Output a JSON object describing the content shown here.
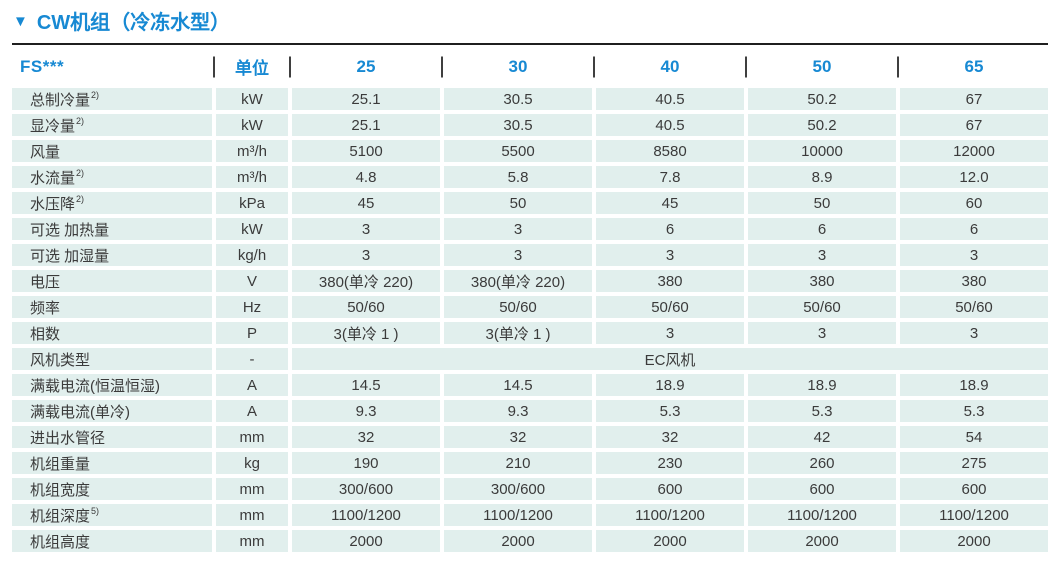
{
  "colors": {
    "accent": "#1789d3",
    "cell_bg": "#e1efed",
    "text": "#3b3b3b",
    "header_rule": "#1f1f1f"
  },
  "title": {
    "marker_glyph": "▼",
    "text": "CW机组（冷冻水型）"
  },
  "table": {
    "model_header": "FS***",
    "unit_header": "单位",
    "model_columns": [
      "25",
      "30",
      "40",
      "50",
      "65"
    ],
    "rows": [
      {
        "label": "总制冷量",
        "sup": "2)",
        "unit": "kW",
        "values": [
          "25.1",
          "30.5",
          "40.5",
          "50.2",
          "67"
        ]
      },
      {
        "label": "显冷量",
        "sup": "2)",
        "unit": "kW",
        "values": [
          "25.1",
          "30.5",
          "40.5",
          "50.2",
          "67"
        ]
      },
      {
        "label": "风量",
        "unit": "m³/h",
        "values": [
          "5100",
          "5500",
          "8580",
          "10000",
          "12000"
        ]
      },
      {
        "label": "水流量",
        "sup": "2)",
        "unit": "m³/h",
        "values": [
          "4.8",
          "5.8",
          "7.8",
          "8.9",
          "12.0"
        ]
      },
      {
        "label": "水压降",
        "sup": "2)",
        "unit": "kPa",
        "values": [
          "45",
          "50",
          "45",
          "50",
          "60"
        ]
      },
      {
        "label": "可选 加热量",
        "unit": "kW",
        "values": [
          "3",
          "3",
          "6",
          "6",
          "6"
        ]
      },
      {
        "label": "可选 加湿量",
        "unit": "kg/h",
        "values": [
          "3",
          "3",
          "3",
          "3",
          "3"
        ]
      },
      {
        "label": "电压",
        "unit": "V",
        "values": [
          "380(单冷 220)",
          "380(单冷 220)",
          "380",
          "380",
          "380"
        ]
      },
      {
        "label": "频率",
        "unit": "Hz",
        "values": [
          "50/60",
          "50/60",
          "50/60",
          "50/60",
          "50/60"
        ]
      },
      {
        "label": "相数",
        "unit": "P",
        "values": [
          "3(单冷 1 )",
          "3(单冷 1 )",
          "3",
          "3",
          "3"
        ]
      },
      {
        "label": "风机类型",
        "unit": "-",
        "merged": "EC风机"
      },
      {
        "label": "满载电流(恒温恒湿)",
        "unit": "A",
        "values": [
          "14.5",
          "14.5",
          "18.9",
          "18.9",
          "18.9"
        ]
      },
      {
        "label": "满载电流(单冷)",
        "unit": "A",
        "values": [
          "9.3",
          "9.3",
          "5.3",
          "5.3",
          "5.3"
        ]
      },
      {
        "label": "进出水管径",
        "unit": "mm",
        "values": [
          "32",
          "32",
          "32",
          "42",
          "54"
        ]
      },
      {
        "label": "机组重量",
        "unit": "kg",
        "values": [
          "190",
          "210",
          "230",
          "260",
          "275"
        ]
      },
      {
        "label": "机组宽度",
        "unit": "mm",
        "values": [
          "300/600",
          "300/600",
          "600",
          "600",
          "600"
        ]
      },
      {
        "label": "机组深度",
        "sup": "5)",
        "unit": "mm",
        "values": [
          "1100/1200",
          "1100/1200",
          "1100/1200",
          "1100/1200",
          "1100/1200"
        ]
      },
      {
        "label": "机组高度",
        "unit": "mm",
        "values": [
          "2000",
          "2000",
          "2000",
          "2000",
          "2000"
        ]
      }
    ]
  }
}
